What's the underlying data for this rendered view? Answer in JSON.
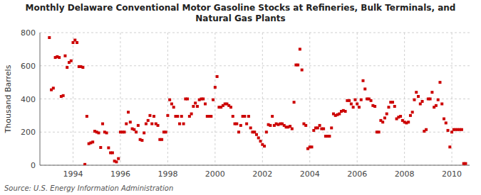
{
  "chart_data": {
    "type": "scatter",
    "title": "Monthly Delaware Conventional Motor Gasoline Stocks at Refineries, Bulk Terminals, and\nNatural Gas Plants",
    "y_label": "Thousand Barrels",
    "annotations": [
      "Source: U.S. Energy Information Administration"
    ],
    "color": "#cc0000",
    "marker": "square",
    "grid": true,
    "xlim": [
      1992.6,
      2010.75
    ],
    "xticks": [
      1994,
      1996,
      1998,
      2000,
      2002,
      2004,
      2006,
      2008,
      2010
    ],
    "ylim": [
      0,
      800
    ],
    "yticks": [
      0,
      200,
      400,
      600,
      800
    ],
    "x": [
      1993.0,
      1993.083,
      1993.167,
      1993.25,
      1993.333,
      1993.417,
      1993.5,
      1993.583,
      1993.667,
      1993.75,
      1993.833,
      1993.917,
      1994.0,
      1994.083,
      1994.167,
      1994.25,
      1994.333,
      1994.417,
      1994.5,
      1994.583,
      1994.667,
      1994.75,
      1994.833,
      1994.917,
      1995.0,
      1995.083,
      1995.167,
      1995.25,
      1995.333,
      1995.417,
      1995.5,
      1995.583,
      1995.667,
      1995.75,
      1995.833,
      1995.917,
      1996.0,
      1996.083,
      1996.167,
      1996.25,
      1996.333,
      1996.417,
      1996.5,
      1996.583,
      1996.667,
      1996.75,
      1996.833,
      1996.917,
      1997.0,
      1997.083,
      1997.167,
      1997.25,
      1997.333,
      1997.417,
      1997.5,
      1997.583,
      1997.667,
      1997.75,
      1997.833,
      1997.917,
      1998.0,
      1998.083,
      1998.167,
      1998.25,
      1998.333,
      1998.417,
      1998.5,
      1998.583,
      1998.667,
      1998.75,
      1998.833,
      1998.917,
      1999.0,
      1999.083,
      1999.167,
      1999.25,
      1999.333,
      1999.417,
      1999.5,
      1999.583,
      1999.667,
      1999.75,
      1999.833,
      1999.917,
      2000.0,
      2000.083,
      2000.167,
      2000.25,
      2000.333,
      2000.417,
      2000.5,
      2000.583,
      2000.667,
      2000.75,
      2000.833,
      2000.917,
      2001.0,
      2001.083,
      2001.167,
      2001.25,
      2001.333,
      2001.417,
      2001.5,
      2001.583,
      2001.667,
      2001.75,
      2001.833,
      2001.917,
      2002.0,
      2002.083,
      2002.167,
      2002.25,
      2002.333,
      2002.417,
      2002.5,
      2002.583,
      2002.667,
      2002.75,
      2002.833,
      2002.917,
      2003.0,
      2003.083,
      2003.167,
      2003.25,
      2003.333,
      2003.417,
      2003.5,
      2003.583,
      2003.667,
      2003.75,
      2003.833,
      2003.917,
      2004.0,
      2004.083,
      2004.167,
      2004.25,
      2004.333,
      2004.417,
      2004.5,
      2004.583,
      2004.667,
      2004.75,
      2004.833,
      2004.917,
      2005.0,
      2005.083,
      2005.167,
      2005.25,
      2005.333,
      2005.417,
      2005.5,
      2005.583,
      2005.667,
      2005.75,
      2005.833,
      2005.917,
      2006.0,
      2006.083,
      2006.167,
      2006.25,
      2006.333,
      2006.417,
      2006.5,
      2006.583,
      2006.667,
      2006.75,
      2006.833,
      2006.917,
      2007.0,
      2007.083,
      2007.167,
      2007.25,
      2007.333,
      2007.417,
      2007.5,
      2007.583,
      2007.667,
      2007.75,
      2007.833,
      2007.917,
      2008.0,
      2008.083,
      2008.167,
      2008.25,
      2008.333,
      2008.417,
      2008.5,
      2008.583,
      2008.667,
      2008.75,
      2008.833,
      2008.917,
      2009.0,
      2009.083,
      2009.167,
      2009.25,
      2009.333,
      2009.417,
      2009.5,
      2009.583,
      2009.667,
      2009.75,
      2009.833,
      2009.917,
      2010.0,
      2010.083,
      2010.167,
      2010.25,
      2010.333,
      2010.417,
      2010.5,
      2010.583
    ],
    "values": [
      770,
      455,
      465,
      650,
      655,
      650,
      415,
      420,
      660,
      590,
      620,
      630,
      740,
      755,
      740,
      595,
      595,
      590,
      5,
      295,
      130,
      135,
      140,
      205,
      200,
      195,
      107,
      250,
      200,
      195,
      105,
      75,
      75,
      25,
      20,
      40,
      200,
      200,
      200,
      250,
      320,
      260,
      220,
      215,
      200,
      240,
      155,
      150,
      195,
      250,
      270,
      300,
      250,
      295,
      250,
      240,
      155,
      155,
      200,
      200,
      300,
      395,
      370,
      350,
      295,
      295,
      250,
      295,
      250,
      400,
      400,
      295,
      310,
      355,
      375,
      355,
      395,
      400,
      400,
      370,
      295,
      295,
      295,
      395,
      470,
      535,
      350,
      350,
      360,
      370,
      370,
      360,
      350,
      295,
      250,
      250,
      200,
      240,
      295,
      295,
      250,
      295,
      225,
      200,
      200,
      185,
      165,
      145,
      125,
      115,
      200,
      245,
      240,
      295,
      240,
      250,
      245,
      250,
      250,
      240,
      230,
      230,
      235,
      220,
      380,
      605,
      605,
      700,
      575,
      250,
      240,
      100,
      110,
      110,
      210,
      225,
      225,
      240,
      220,
      220,
      175,
      175,
      175,
      225,
      310,
      300,
      305,
      310,
      325,
      330,
      325,
      390,
      390,
      370,
      350,
      395,
      370,
      350,
      395,
      510,
      460,
      400,
      400,
      390,
      360,
      355,
      200,
      200,
      270,
      260,
      285,
      310,
      350,
      380,
      380,
      355,
      280,
      290,
      295,
      270,
      260,
      255,
      260,
      300,
      320,
      395,
      440,
      415,
      370,
      385,
      205,
      215,
      400,
      400,
      440,
      350,
      360,
      395,
      500,
      370,
      280,
      255,
      210,
      110,
      200,
      215,
      215,
      215,
      215,
      215,
      10,
      10
    ]
  }
}
